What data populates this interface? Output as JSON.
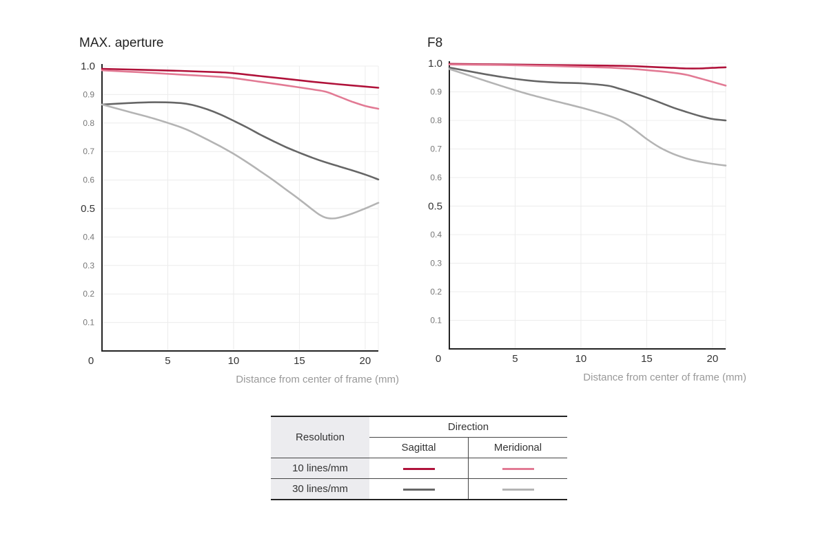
{
  "chart_data": [
    {
      "type": "line",
      "title": "MAX. aperture",
      "xlabel": "Distance from center of frame (mm)",
      "ylabel": "",
      "xlim": [
        0,
        21
      ],
      "ylim": [
        0,
        1.0
      ],
      "x_ticks": [
        0,
        5,
        10,
        15,
        20
      ],
      "y_ticks": [
        {
          "value": 1.0,
          "label": "1.0"
        },
        {
          "value": 0.9,
          "label": "0.9"
        },
        {
          "value": 0.8,
          "label": "0.8"
        },
        {
          "value": 0.7,
          "label": "0.7"
        },
        {
          "value": 0.6,
          "label": "0.6"
        },
        {
          "value": 0.5,
          "label": "0.5"
        },
        {
          "value": 0.4,
          "label": "0.4"
        },
        {
          "value": 0.3,
          "label": "0.3"
        },
        {
          "value": 0.2,
          "label": "0.2"
        },
        {
          "value": 0.1,
          "label": "0.1"
        }
      ],
      "grid": true,
      "series": [
        {
          "name": "10 lines/mm Sagittal",
          "color": "#b0123a",
          "x": [
            0,
            3,
            6,
            9,
            10,
            12,
            14,
            16,
            18,
            20,
            21
          ],
          "y": [
            0.99,
            0.987,
            0.983,
            0.978,
            0.975,
            0.965,
            0.955,
            0.945,
            0.936,
            0.928,
            0.924
          ]
        },
        {
          "name": "10 lines/mm Meridional",
          "color": "#e27a94",
          "x": [
            0,
            3,
            6,
            9,
            10,
            12,
            14,
            16,
            17,
            18,
            19,
            20,
            21
          ],
          "y": [
            0.985,
            0.978,
            0.97,
            0.962,
            0.958,
            0.945,
            0.932,
            0.918,
            0.91,
            0.893,
            0.875,
            0.86,
            0.85
          ]
        },
        {
          "name": "30 lines/mm Sagittal",
          "color": "#666666",
          "x": [
            0,
            2,
            4,
            6,
            7,
            8,
            9,
            10,
            11,
            12,
            13,
            14,
            15,
            16,
            17,
            18,
            19,
            20,
            21
          ],
          "y": [
            0.865,
            0.87,
            0.873,
            0.87,
            0.862,
            0.848,
            0.83,
            0.808,
            0.785,
            0.76,
            0.737,
            0.715,
            0.696,
            0.678,
            0.662,
            0.648,
            0.634,
            0.619,
            0.602
          ]
        },
        {
          "name": "30 lines/mm Meridional",
          "color": "#b4b4b4",
          "x": [
            0,
            2,
            4,
            6,
            7,
            8,
            9,
            10,
            11,
            12,
            13,
            14,
            15,
            16,
            16.5,
            17,
            17.5,
            18,
            19,
            20,
            21
          ],
          "y": [
            0.865,
            0.84,
            0.815,
            0.785,
            0.765,
            0.742,
            0.718,
            0.692,
            0.663,
            0.632,
            0.6,
            0.566,
            0.532,
            0.496,
            0.479,
            0.468,
            0.465,
            0.468,
            0.482,
            0.5,
            0.52
          ]
        }
      ]
    },
    {
      "type": "line",
      "title": "F8",
      "xlabel": "Distance from center of frame (mm)",
      "ylabel": "",
      "xlim": [
        0,
        21
      ],
      "ylim": [
        0,
        1.0
      ],
      "x_ticks": [
        0,
        5,
        10,
        15,
        20
      ],
      "y_ticks": [
        {
          "value": 1.0,
          "label": "1.0"
        },
        {
          "value": 0.9,
          "label": "0.9"
        },
        {
          "value": 0.8,
          "label": "0.8"
        },
        {
          "value": 0.7,
          "label": "0.7"
        },
        {
          "value": 0.6,
          "label": "0.6"
        },
        {
          "value": 0.5,
          "label": "0.5"
        },
        {
          "value": 0.4,
          "label": "0.4"
        },
        {
          "value": 0.3,
          "label": "0.3"
        },
        {
          "value": 0.2,
          "label": "0.2"
        },
        {
          "value": 0.1,
          "label": "0.1"
        }
      ],
      "grid": true,
      "series": [
        {
          "name": "10 lines/mm Sagittal",
          "color": "#b0123a",
          "x": [
            0,
            4,
            8,
            12,
            14,
            16,
            17,
            18,
            19,
            20,
            21
          ],
          "y": [
            0.998,
            0.996,
            0.994,
            0.992,
            0.99,
            0.986,
            0.984,
            0.982,
            0.982,
            0.984,
            0.986
          ]
        },
        {
          "name": "10 lines/mm Meridional",
          "color": "#e27a94",
          "x": [
            0,
            4,
            8,
            12,
            14,
            16,
            17,
            18,
            19,
            20,
            21
          ],
          "y": [
            0.996,
            0.994,
            0.99,
            0.985,
            0.98,
            0.972,
            0.967,
            0.96,
            0.948,
            0.935,
            0.922
          ]
        },
        {
          "name": "30 lines/mm Sagittal",
          "color": "#666666",
          "x": [
            0,
            2,
            4,
            6,
            8,
            10,
            12,
            13,
            14,
            15,
            16,
            17,
            18,
            19,
            20,
            21
          ],
          "y": [
            0.985,
            0.968,
            0.952,
            0.94,
            0.933,
            0.93,
            0.922,
            0.91,
            0.896,
            0.88,
            0.863,
            0.845,
            0.83,
            0.816,
            0.805,
            0.8
          ]
        },
        {
          "name": "30 lines/mm Meridional",
          "color": "#b4b4b4",
          "x": [
            0,
            2,
            4,
            6,
            8,
            10,
            12,
            13,
            14,
            15,
            16,
            17,
            18,
            19,
            20,
            21
          ],
          "y": [
            0.98,
            0.95,
            0.92,
            0.892,
            0.868,
            0.845,
            0.818,
            0.8,
            0.77,
            0.735,
            0.705,
            0.683,
            0.667,
            0.656,
            0.648,
            0.642
          ]
        }
      ]
    }
  ],
  "legend": {
    "resolution_header": "Resolution",
    "direction_header": "Direction",
    "sagittal_label": "Sagittal",
    "meridional_label": "Meridional",
    "rows": [
      {
        "label": "10 lines/mm",
        "sagittal_color": "#b0123a",
        "meridional_color": "#e27a94"
      },
      {
        "label": "30 lines/mm",
        "sagittal_color": "#666666",
        "meridional_color": "#b4b4b4"
      }
    ]
  }
}
